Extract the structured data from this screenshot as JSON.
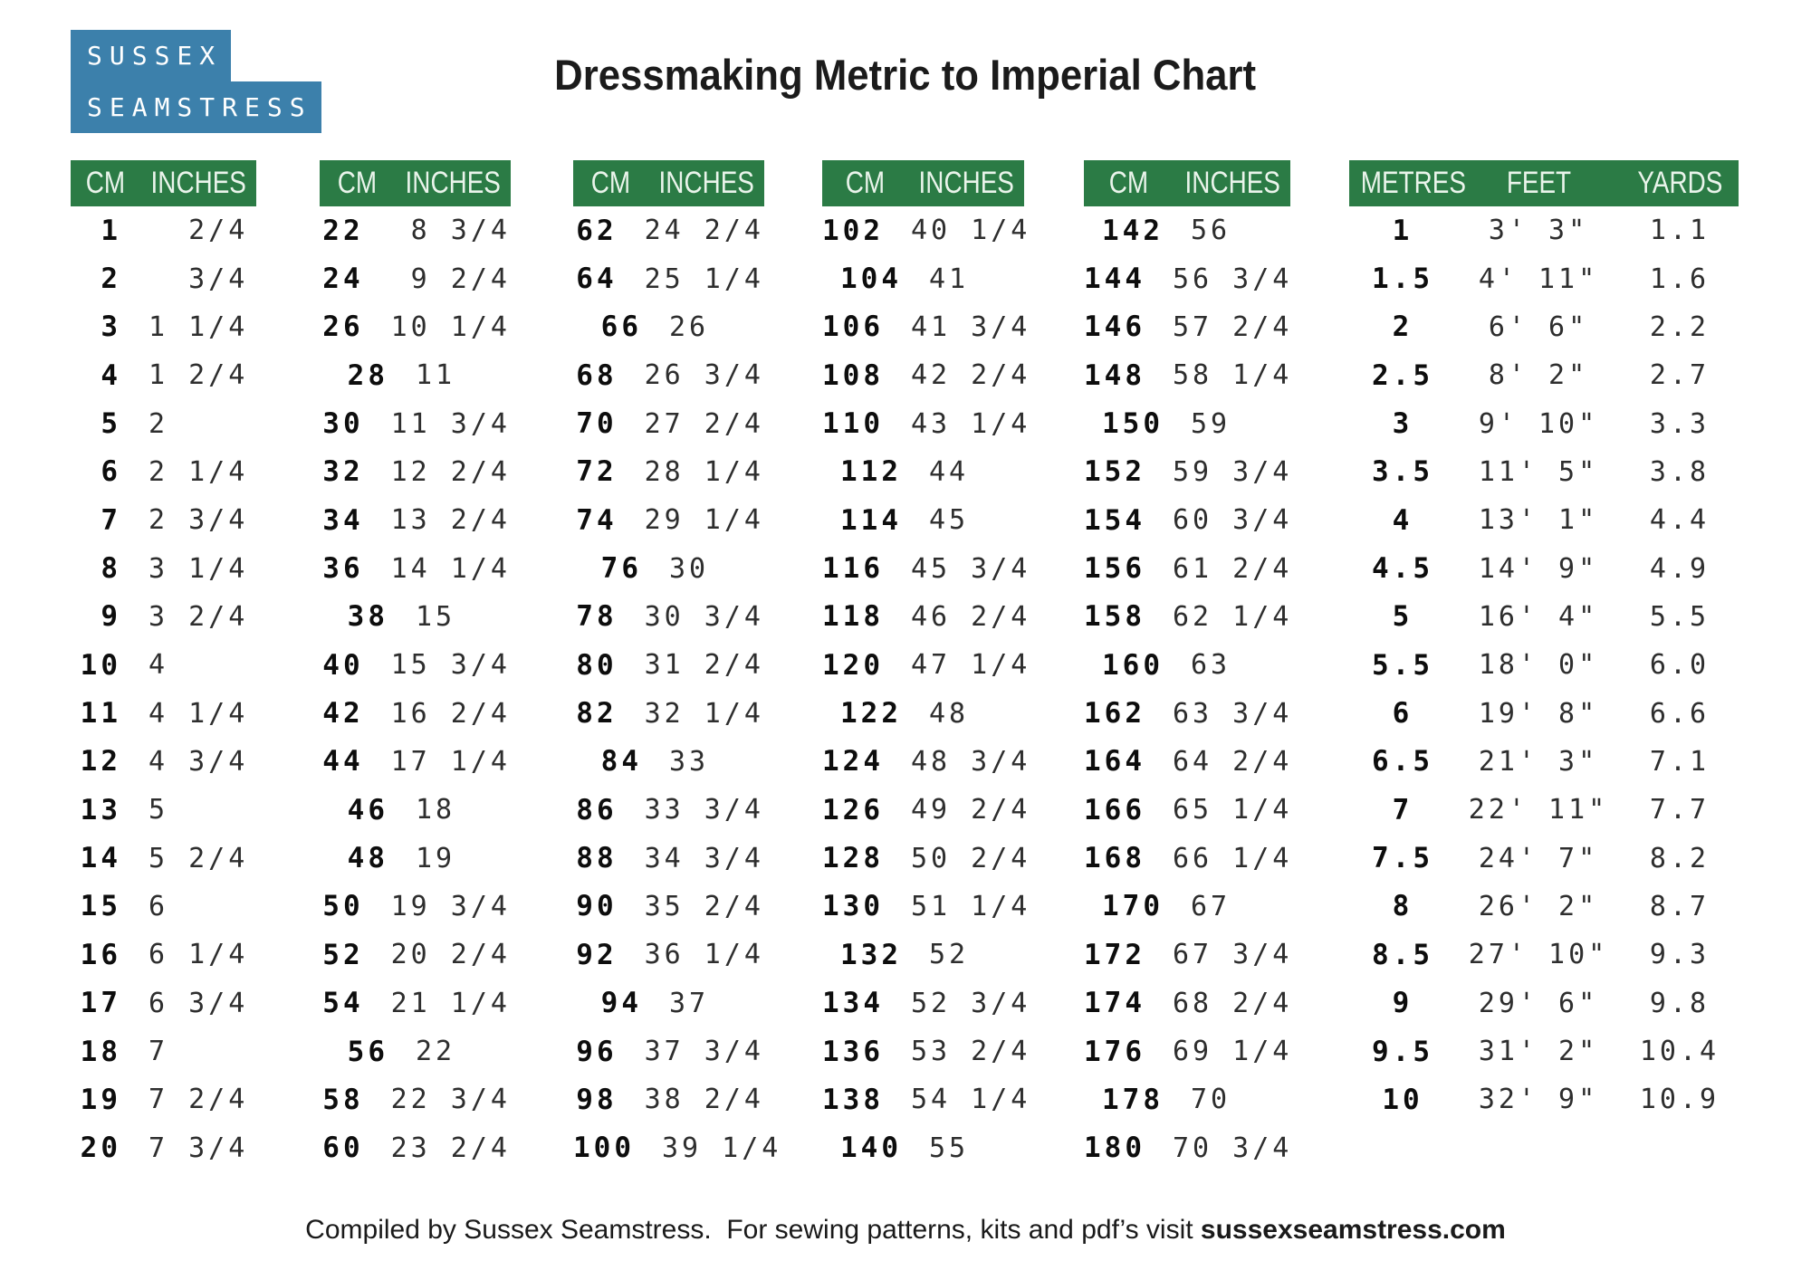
{
  "logo": {
    "line1": "SUSSEX",
    "line2": "SEAMSTRESS"
  },
  "title": "Dressmaking Metric to Imperial Chart",
  "footer": {
    "text": "Compiled by Sussex Seamstress.  For sewing patterns, kits and pdf’s visit ",
    "site": "sussexseamstress.com"
  },
  "colors": {
    "header_green": "#2b7b45",
    "logo_blue": "#3c80ab"
  },
  "tables": [
    {
      "kind": "cm_inches",
      "headers": [
        "CM",
        "INCHES"
      ],
      "rows": [
        [
          "1",
          "  2/4"
        ],
        [
          "2",
          "  3/4"
        ],
        [
          "3",
          "1 1/4"
        ],
        [
          "4",
          "1 2/4"
        ],
        [
          "5",
          "2"
        ],
        [
          "6",
          "2 1/4"
        ],
        [
          "7",
          "2 3/4"
        ],
        [
          "8",
          "3 1/4"
        ],
        [
          "9",
          "3 2/4"
        ],
        [
          "10",
          "4"
        ],
        [
          "11",
          "4 1/4"
        ],
        [
          "12",
          "4 3/4"
        ],
        [
          "13",
          "5"
        ],
        [
          "14",
          "5 2/4"
        ],
        [
          "15",
          "6"
        ],
        [
          "16",
          "6 1/4"
        ],
        [
          "17",
          "6 3/4"
        ],
        [
          "18",
          "7"
        ],
        [
          "19",
          "7 2/4"
        ],
        [
          "20",
          "7 3/4"
        ]
      ]
    },
    {
      "kind": "cm_inches",
      "headers": [
        "CM",
        "INCHES"
      ],
      "rows": [
        [
          "22",
          " 8 3/4"
        ],
        [
          "24",
          " 9 2/4"
        ],
        [
          "26",
          "10 1/4"
        ],
        [
          "28",
          "11"
        ],
        [
          "30",
          "11 3/4"
        ],
        [
          "32",
          "12 2/4"
        ],
        [
          "34",
          "13 2/4"
        ],
        [
          "36",
          "14 1/4"
        ],
        [
          "38",
          "15"
        ],
        [
          "40",
          "15 3/4"
        ],
        [
          "42",
          "16 2/4"
        ],
        [
          "44",
          "17 1/4"
        ],
        [
          "46",
          "18"
        ],
        [
          "48",
          "19"
        ],
        [
          "50",
          "19 3/4"
        ],
        [
          "52",
          "20 2/4"
        ],
        [
          "54",
          "21 1/4"
        ],
        [
          "56",
          "22"
        ],
        [
          "58",
          "22 3/4"
        ],
        [
          "60",
          "23 2/4"
        ]
      ]
    },
    {
      "kind": "cm_inches",
      "headers": [
        "CM",
        "INCHES"
      ],
      "rows": [
        [
          "62",
          "24 2/4"
        ],
        [
          "64",
          "25 1/4"
        ],
        [
          "66",
          "26"
        ],
        [
          "68",
          "26 3/4"
        ],
        [
          "70",
          "27 2/4"
        ],
        [
          "72",
          "28 1/4"
        ],
        [
          "74",
          "29 1/4"
        ],
        [
          "76",
          "30"
        ],
        [
          "78",
          "30 3/4"
        ],
        [
          "80",
          "31 2/4"
        ],
        [
          "82",
          "32 1/4"
        ],
        [
          "84",
          "33"
        ],
        [
          "86",
          "33 3/4"
        ],
        [
          "88",
          "34 3/4"
        ],
        [
          "90",
          "35 2/4"
        ],
        [
          "92",
          "36 1/4"
        ],
        [
          "94",
          "37"
        ],
        [
          "96",
          "37 3/4"
        ],
        [
          "98",
          "38 2/4"
        ],
        [
          "100",
          "39 1/4"
        ]
      ]
    },
    {
      "kind": "cm_inches",
      "headers": [
        "CM",
        "INCHES"
      ],
      "rows": [
        [
          "102",
          "40 1/4"
        ],
        [
          "104",
          "41"
        ],
        [
          "106",
          "41 3/4"
        ],
        [
          "108",
          "42 2/4"
        ],
        [
          "110",
          "43 1/4"
        ],
        [
          "112",
          "44"
        ],
        [
          "114",
          "45"
        ],
        [
          "116",
          "45 3/4"
        ],
        [
          "118",
          "46 2/4"
        ],
        [
          "120",
          "47 1/4"
        ],
        [
          "122",
          "48"
        ],
        [
          "124",
          "48 3/4"
        ],
        [
          "126",
          "49 2/4"
        ],
        [
          "128",
          "50 2/4"
        ],
        [
          "130",
          "51 1/4"
        ],
        [
          "132",
          "52"
        ],
        [
          "134",
          "52 3/4"
        ],
        [
          "136",
          "53 2/4"
        ],
        [
          "138",
          "54 1/4"
        ],
        [
          "140",
          "55"
        ]
      ]
    },
    {
      "kind": "cm_inches",
      "headers": [
        "CM",
        "INCHES"
      ],
      "rows": [
        [
          "142",
          "56"
        ],
        [
          "144",
          "56 3/4"
        ],
        [
          "146",
          "57 2/4"
        ],
        [
          "148",
          "58 1/4"
        ],
        [
          "150",
          "59"
        ],
        [
          "152",
          "59 3/4"
        ],
        [
          "154",
          "60 3/4"
        ],
        [
          "156",
          "61 2/4"
        ],
        [
          "158",
          "62 1/4"
        ],
        [
          "160",
          "63"
        ],
        [
          "162",
          "63 3/4"
        ],
        [
          "164",
          "64 2/4"
        ],
        [
          "166",
          "65 1/4"
        ],
        [
          "168",
          "66 1/4"
        ],
        [
          "170",
          "67"
        ],
        [
          "172",
          "67 3/4"
        ],
        [
          "174",
          "68 2/4"
        ],
        [
          "176",
          "69 1/4"
        ],
        [
          "178",
          "70"
        ],
        [
          "180",
          "70 3/4"
        ]
      ]
    },
    {
      "kind": "metres_feet_yards",
      "headers": [
        "METRES",
        "FEET",
        "YARDS"
      ],
      "rows": [
        [
          "1",
          "3' 3\"",
          "1.1"
        ],
        [
          "1.5",
          "4' 11\"",
          "1.6"
        ],
        [
          "2",
          "6' 6\"",
          "2.2"
        ],
        [
          "2.5",
          "8' 2\"",
          "2.7"
        ],
        [
          "3",
          "9' 10\"",
          "3.3"
        ],
        [
          "3.5",
          "11' 5\"",
          "3.8"
        ],
        [
          "4",
          "13' 1\"",
          "4.4"
        ],
        [
          "4.5",
          "14' 9\"",
          "4.9"
        ],
        [
          "5",
          "16' 4\"",
          "5.5"
        ],
        [
          "5.5",
          "18' 0\"",
          "6.0"
        ],
        [
          "6",
          "19' 8\"",
          "6.6"
        ],
        [
          "6.5",
          "21' 3\"",
          "7.1"
        ],
        [
          "7",
          "22' 11\"",
          "7.7"
        ],
        [
          "7.5",
          "24' 7\"",
          "8.2"
        ],
        [
          "8",
          "26' 2\"",
          "8.7"
        ],
        [
          "8.5",
          "27' 10\"",
          "9.3"
        ],
        [
          "9",
          "29' 6\"",
          "9.8"
        ],
        [
          "9.5",
          "31' 2\"",
          "10.4"
        ],
        [
          "10",
          "32' 9\"",
          "10.9"
        ]
      ]
    }
  ]
}
